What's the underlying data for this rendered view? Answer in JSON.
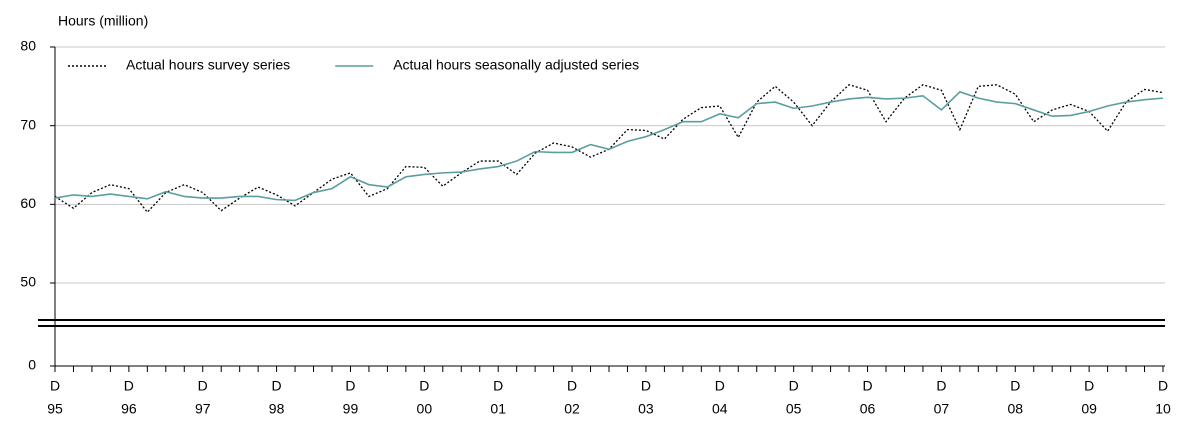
{
  "chart_data": {
    "type": "line",
    "y_label": "Hours (million)",
    "categories": [
      [
        "D",
        "95"
      ],
      null,
      null,
      null,
      [
        "D",
        "96"
      ],
      null,
      null,
      null,
      [
        "D",
        "97"
      ],
      null,
      null,
      null,
      [
        "D",
        "98"
      ],
      null,
      null,
      null,
      [
        "D",
        "99"
      ],
      null,
      null,
      null,
      [
        "D",
        "00"
      ],
      null,
      null,
      null,
      [
        "D",
        "01"
      ],
      null,
      null,
      null,
      [
        "D",
        "02"
      ],
      null,
      null,
      null,
      [
        "D",
        "03"
      ],
      null,
      null,
      null,
      [
        "D",
        "04"
      ],
      null,
      null,
      null,
      [
        "D",
        "05"
      ],
      null,
      null,
      null,
      [
        "D",
        "06"
      ],
      null,
      null,
      null,
      [
        "D",
        "07"
      ],
      null,
      null,
      null,
      [
        "D",
        "08"
      ],
      null,
      null,
      null,
      [
        "D",
        "09"
      ],
      null,
      null,
      null,
      [
        "D",
        "10"
      ]
    ],
    "series": [
      {
        "name": "Actual hours survey series",
        "color": "#000000",
        "style": "dotted",
        "values": [
          61,
          59.5,
          61.5,
          62.5,
          62,
          59,
          61.5,
          62.5,
          61.5,
          59.2,
          60.8,
          62.2,
          61.2,
          59.8,
          61.5,
          63.2,
          64,
          61,
          62,
          64.8,
          64.7,
          62.3,
          64,
          65.5,
          65.5,
          63.8,
          66.5,
          67.8,
          67.3,
          66,
          67,
          69.5,
          69.4,
          68.3,
          70.8,
          72.3,
          72.5,
          68.5,
          73,
          75,
          73,
          70,
          73,
          75.2,
          74.5,
          70.5,
          73.5,
          75.2,
          74.5,
          69.5,
          75,
          75.2,
          74,
          70.5,
          72,
          72.7,
          71.8,
          69.3,
          73,
          74.6,
          74.2
        ]
      },
      {
        "name": "Actual hours seasonally adjusted series",
        "color": "#5a9ea0",
        "style": "solid",
        "values": [
          60.8,
          61.2,
          61,
          61.3,
          61,
          60.7,
          61.6,
          61,
          60.8,
          60.8,
          61,
          61,
          60.6,
          60.5,
          61.5,
          62,
          63.5,
          62.5,
          62.2,
          63.5,
          63.8,
          64,
          64.1,
          64.5,
          64.8,
          65.5,
          66.7,
          66.6,
          66.6,
          67.6,
          67,
          68,
          68.6,
          69.5,
          70.5,
          70.5,
          71.5,
          71,
          72.8,
          73,
          72.2,
          72.5,
          73,
          73.4,
          73.6,
          73.4,
          73.5,
          73.8,
          72,
          74.3,
          73.5,
          73,
          72.8,
          72,
          71.2,
          71.3,
          71.8,
          72.5,
          73,
          73.3,
          73.5
        ]
      }
    ],
    "ylim": [
      0,
      80
    ],
    "yticks": [
      0,
      50,
      60,
      70,
      80
    ],
    "axis_break": true,
    "grid": true,
    "legend": "upper left"
  }
}
